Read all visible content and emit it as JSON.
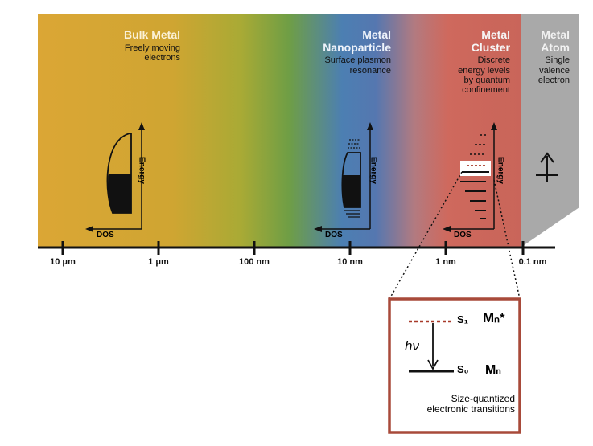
{
  "colors": {
    "bulk": "#d9a532",
    "green": "#7aa43f",
    "nano": "#4c79b8",
    "cluster": "#c9655a",
    "atom": "#a9a9a9",
    "box_border": "#a84a3a",
    "excited_line": "#a83a2a"
  },
  "regions": [
    {
      "id": "atom",
      "title_lines": [
        "Metal",
        "Atom"
      ],
      "desc_lines": [
        "Single",
        "valence",
        "electron"
      ]
    },
    {
      "id": "cluster",
      "title_lines": [
        "Metal",
        "Cluster"
      ],
      "desc_lines": [
        "Discrete",
        "energy levels",
        "by quantum",
        "confinement"
      ]
    },
    {
      "id": "nano",
      "title_lines": [
        "Metal",
        "Nanoparticle"
      ],
      "desc_lines": [
        "Surface plasmon",
        "resonance"
      ]
    },
    {
      "id": "bulk",
      "title_lines": [
        "Bulk Metal"
      ],
      "desc_lines": [
        "Freely moving",
        "electrons"
      ]
    }
  ],
  "axis_ticks": [
    "10 μm",
    "1 μm",
    "100 nm",
    "10 nm",
    "1 nm",
    "0.1 nm"
  ],
  "dos_plots": {
    "energy_label": "Energy",
    "dos_label": "DOS"
  },
  "atom_icon": "up-arrow-spin-icon",
  "inset": {
    "excited_state": "Mₙ*",
    "excited_level": "S₁",
    "ground_state": "Mₙ",
    "ground_level": "S₀",
    "photon": "hν",
    "caption_lines": [
      "Size-quantized",
      "electronic transitions"
    ]
  }
}
